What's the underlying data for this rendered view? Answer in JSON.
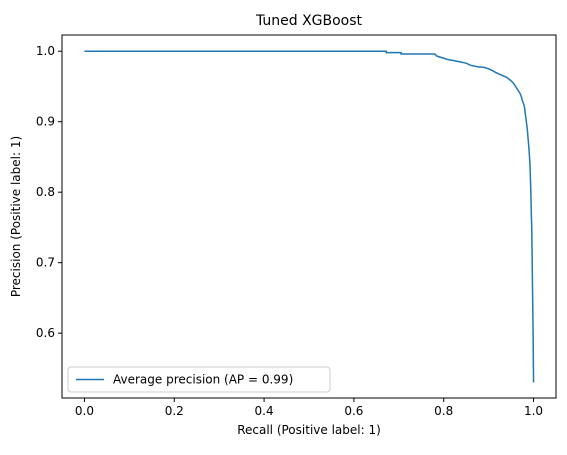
{
  "chart_data": {
    "type": "line",
    "title": "Tuned XGBoost",
    "xlabel": "Recall (Positive label: 1)",
    "ylabel": "Precision (Positive label: 1)",
    "xlim": [
      -0.05,
      1.05
    ],
    "ylim": [
      0.508,
      1.023
    ],
    "xticks": [
      0.0,
      0.2,
      0.4,
      0.6,
      0.8,
      1.0
    ],
    "xtick_labels": [
      "0.0",
      "0.2",
      "0.4",
      "0.6",
      "0.8",
      "1.0"
    ],
    "yticks": [
      0.6,
      0.7,
      0.8,
      0.9,
      1.0
    ],
    "ytick_labels": [
      "0.6",
      "0.7",
      "0.8",
      "0.9",
      "1.0"
    ],
    "grid": false,
    "legend_position": "lower-left",
    "series": [
      {
        "name": "Average precision (AP = 0.99)",
        "color": "#1f77b4",
        "x": [
          0.0,
          0.672,
          0.672,
          0.705,
          0.705,
          0.78,
          0.785,
          0.8,
          0.81,
          0.82,
          0.835,
          0.85,
          0.86,
          0.875,
          0.89,
          0.9,
          0.91,
          0.915,
          0.925,
          0.94,
          0.95,
          0.955,
          0.96,
          0.965,
          0.97,
          0.973,
          0.975,
          0.978,
          0.98,
          0.982,
          0.984,
          0.986,
          0.988,
          0.99,
          0.992,
          0.993,
          0.994,
          0.995,
          0.996,
          0.997,
          0.998,
          0.999,
          1.0
        ],
        "y": [
          1.0,
          1.0,
          0.998,
          0.998,
          0.996,
          0.996,
          0.993,
          0.99,
          0.988,
          0.987,
          0.985,
          0.983,
          0.98,
          0.978,
          0.977,
          0.975,
          0.972,
          0.97,
          0.967,
          0.963,
          0.958,
          0.955,
          0.95,
          0.945,
          0.94,
          0.935,
          0.93,
          0.925,
          0.92,
          0.91,
          0.9,
          0.89,
          0.875,
          0.86,
          0.84,
          0.82,
          0.8,
          0.77,
          0.75,
          0.7,
          0.65,
          0.6,
          0.53
        ]
      }
    ]
  }
}
